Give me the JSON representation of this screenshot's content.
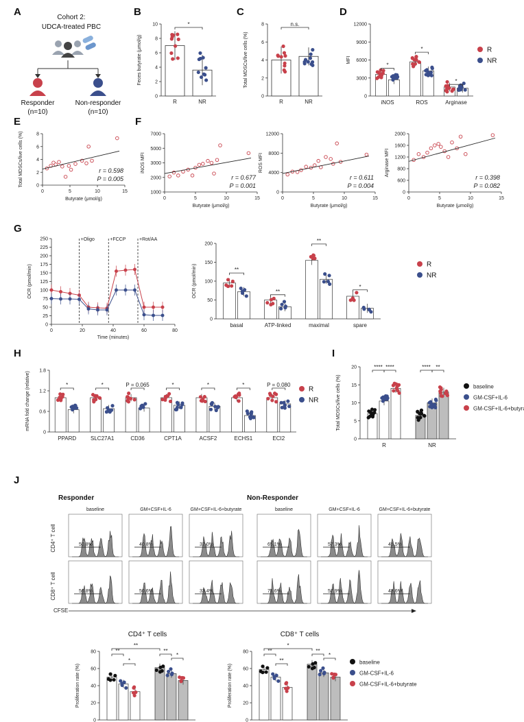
{
  "colors": {
    "R": "#c8414b",
    "NR": "#3b4f8c",
    "baseline": "#111111",
    "gray": "#bdbdbd",
    "hist": "#8a8a8a"
  },
  "panel_labels": [
    "A",
    "B",
    "C",
    "D",
    "E",
    "F",
    "G",
    "H",
    "I",
    "J"
  ],
  "panelA": {
    "title_line1": "Cohort 2:",
    "title_line2": "UDCA-treated PBC",
    "responder": "Responder",
    "responder_n": "(n=10)",
    "nonresponder": "Non-responder",
    "nonresponder_n": "(n=10)"
  },
  "panelJ": {
    "responder_title": "Responder",
    "nonresponder_title": "Non-Responder",
    "col_labels": [
      "baseline",
      "GM+CSF+IL-6",
      "GM+CSF+IL-6+butyrate"
    ],
    "row_cd4": "CD4⁺ T cell",
    "row_cd8": "CD8⁺ T cell",
    "cfse": "CFSE"
  },
  "chart_data": [
    {
      "id": "B",
      "type": "bar",
      "ylabel": "Feces butyrate (μmol/g)",
      "ylim": [
        0,
        10
      ],
      "yticks": [
        "0",
        "2",
        "4",
        "6",
        "8",
        "10"
      ],
      "categories": [
        "R",
        "NR"
      ],
      "values": [
        7.0,
        3.6
      ],
      "sd": [
        2.0,
        2.1
      ],
      "sig": [
        {
          "label": "*",
          "from": 0,
          "to": 1
        }
      ]
    },
    {
      "id": "C",
      "type": "bar",
      "ylabel": "Total MDSCs/live cells (%)",
      "ylim": [
        0,
        8
      ],
      "yticks": [
        "0",
        "2",
        "4",
        "6",
        "8"
      ],
      "categories": [
        "R",
        "NR"
      ],
      "values": [
        4.0,
        4.4
      ],
      "sd": [
        1.5,
        1.0
      ],
      "sig": [
        {
          "label": "n.s.",
          "from": 0,
          "to": 1
        }
      ]
    },
    {
      "id": "D",
      "type": "bar",
      "ylabel": "MFI",
      "ylim": [
        0,
        12000
      ],
      "yticks": [
        "0",
        "3000",
        "6000",
        "9000",
        "12000"
      ],
      "categories": [
        "iNOS",
        "ROS",
        "Arginase"
      ],
      "series": [
        {
          "name": "R",
          "values": [
            3600,
            5700,
            1500
          ]
        },
        {
          "name": "NR",
          "values": [
            2700,
            4200,
            1300
          ]
        }
      ],
      "legend": [
        "R",
        "NR"
      ],
      "sig": [
        "*",
        "*",
        "*"
      ]
    },
    {
      "id": "E",
      "type": "scatter",
      "xlabel": "Butyrate (μmol/g)",
      "ylabel": "Total MDSCs/live cells (%)",
      "xlim": [
        0,
        15
      ],
      "xticks": [
        "0",
        "5",
        "10",
        "15"
      ],
      "ylim": [
        0,
        8
      ],
      "yticks": [
        "0",
        "2",
        "4",
        "6",
        "8"
      ],
      "r": "r = 0.598",
      "p": "P = 0.005",
      "fit": [
        [
          0,
          2.5
        ],
        [
          14,
          5.3
        ]
      ],
      "points": [
        [
          0.8,
          2.6
        ],
        [
          1.5,
          3.0
        ],
        [
          2.0,
          3.5
        ],
        [
          2.4,
          3.2
        ],
        [
          3.0,
          3.6
        ],
        [
          3.6,
          2.9
        ],
        [
          4.2,
          1.3
        ],
        [
          4.8,
          3.0
        ],
        [
          5.2,
          2.4
        ],
        [
          6.0,
          3.3
        ],
        [
          7.2,
          3.8
        ],
        [
          8.0,
          3.4
        ],
        [
          8.4,
          6.0
        ],
        [
          9.0,
          3.8
        ],
        [
          13.6,
          7.3
        ]
      ]
    },
    {
      "id": "F1",
      "type": "scatter",
      "xlabel": "Butyrate (μmol/g)",
      "ylabel": "iNOS MFI",
      "xlim": [
        0,
        15
      ],
      "xticks": [
        "0",
        "5",
        "10",
        "15"
      ],
      "ylim": [
        1000,
        7000
      ],
      "yticks": [
        "1000",
        "2000",
        "3000",
        "5000",
        "7000"
      ],
      "r": "r = 0.677",
      "p": "P = 0.001",
      "fit": [
        [
          0,
          2900
        ],
        [
          14,
          4500
        ]
      ],
      "points": [
        [
          0.8,
          2600
        ],
        [
          1.5,
          3000
        ],
        [
          2.2,
          2700
        ],
        [
          3.0,
          3100
        ],
        [
          3.8,
          3300
        ],
        [
          4.5,
          2700
        ],
        [
          5.0,
          3500
        ],
        [
          5.6,
          3800
        ],
        [
          6.2,
          3900
        ],
        [
          7.0,
          4200
        ],
        [
          7.6,
          4000
        ],
        [
          8.0,
          2900
        ],
        [
          8.5,
          4300
        ],
        [
          9.0,
          5800
        ],
        [
          13.6,
          5000
        ]
      ]
    },
    {
      "id": "F2",
      "type": "scatter",
      "xlabel": "Butyrate (μmol/g)",
      "ylabel": "ROS MFI",
      "xlim": [
        0,
        15
      ],
      "xticks": [
        "0",
        "5",
        "10",
        "15"
      ],
      "ylim": [
        0,
        12000
      ],
      "yticks": [
        "0",
        "4000",
        "8000",
        "12000"
      ],
      "r": "r = 0.611",
      "p": "P = 0.004",
      "fit": [
        [
          0,
          3800
        ],
        [
          14,
          7400
        ]
      ],
      "points": [
        [
          0.8,
          3600
        ],
        [
          1.6,
          4200
        ],
        [
          2.4,
          4100
        ],
        [
          3.0,
          4500
        ],
        [
          3.8,
          5200
        ],
        [
          4.6,
          5000
        ],
        [
          5.2,
          5500
        ],
        [
          5.8,
          6400
        ],
        [
          6.2,
          5100
        ],
        [
          7.0,
          7200
        ],
        [
          7.8,
          6800
        ],
        [
          8.2,
          5800
        ],
        [
          8.8,
          10000
        ],
        [
          9.4,
          6200
        ],
        [
          13.6,
          7700
        ]
      ]
    },
    {
      "id": "F3",
      "type": "scatter",
      "xlabel": "Butyrate (μmol/g)",
      "ylabel": "Arginase MFI",
      "xlim": [
        0,
        15
      ],
      "xticks": [
        "0",
        "5",
        "10",
        "15"
      ],
      "ylim": [
        0,
        2000
      ],
      "yticks": [
        "0",
        "600",
        "800",
        "1200",
        "1600",
        "2000"
      ],
      "r": "r = 0.398",
      "p": "P = 0.082",
      "fit": [
        [
          0,
          1050
        ],
        [
          14,
          1850
        ]
      ],
      "points": [
        [
          0.8,
          1100
        ],
        [
          1.6,
          1300
        ],
        [
          2.4,
          1200
        ],
        [
          3.0,
          1350
        ],
        [
          3.6,
          1500
        ],
        [
          4.2,
          1600
        ],
        [
          4.8,
          1650
        ],
        [
          5.2,
          1550
        ],
        [
          5.8,
          1400
        ],
        [
          6.4,
          1200
        ],
        [
          7.0,
          1700
        ],
        [
          7.8,
          1500
        ],
        [
          8.4,
          1900
        ],
        [
          9.2,
          1300
        ],
        [
          13.6,
          1950
        ]
      ]
    },
    {
      "id": "G1",
      "type": "line",
      "xlabel": "Time (minutes)",
      "ylabel": "OCR (pmol/min)",
      "xlim": [
        0,
        80
      ],
      "xticks": [
        "0",
        "20",
        "40",
        "60",
        "80"
      ],
      "ylim": [
        0,
        250
      ],
      "yticks": [
        "0",
        "25",
        "50",
        "75",
        "100",
        "125",
        "150",
        "175",
        "200",
        "225",
        "250"
      ],
      "events": [
        {
          "x": 18,
          "label": "+Oligo"
        },
        {
          "x": 37,
          "label": "+FCCP"
        },
        {
          "x": 56,
          "label": "+Rot/AA"
        }
      ],
      "x": [
        0,
        6,
        12,
        18,
        24,
        30,
        36,
        42,
        48,
        54,
        60,
        66,
        72
      ],
      "series": [
        {
          "name": "R",
          "values": [
            100,
            95,
            90,
            85,
            50,
            48,
            47,
            155,
            158,
            160,
            50,
            50,
            50
          ]
        },
        {
          "name": "NR",
          "values": [
            75,
            74,
            74,
            73,
            45,
            42,
            42,
            100,
            100,
            100,
            28,
            26,
            26
          ]
        }
      ]
    },
    {
      "id": "G2",
      "type": "bar",
      "ylabel": "OCR (pmol/min)",
      "ylim": [
        0,
        200
      ],
      "yticks": [
        "0",
        "50",
        "100",
        "150",
        "200"
      ],
      "categories": [
        "basal",
        "ATP-linked",
        "maximal",
        "spare"
      ],
      "series": [
        {
          "name": "R",
          "values": [
            95,
            50,
            155,
            60
          ]
        },
        {
          "name": "NR",
          "values": [
            72,
            32,
            105,
            28
          ]
        }
      ],
      "legend": [
        "R",
        "NR"
      ],
      "sig": [
        "**",
        "**",
        "**",
        "*"
      ]
    },
    {
      "id": "H",
      "type": "bar",
      "ylabel": "mRNA fold change (relative)",
      "ylim": [
        0,
        1.8
      ],
      "yticks": [
        "0",
        "0.6",
        "1.2",
        "1.8"
      ],
      "categories": [
        "PPARD",
        "SLC27A1",
        "CD36",
        "CPT1A",
        "ACSF2",
        "ECHS1",
        "ECI2"
      ],
      "series": [
        {
          "name": "R",
          "values": [
            1.0,
            1.0,
            1.0,
            1.0,
            1.0,
            1.0,
            1.0
          ]
        },
        {
          "name": "NR",
          "values": [
            0.65,
            0.68,
            0.7,
            0.78,
            0.75,
            0.48,
            0.82
          ]
        }
      ],
      "legend": [
        "R",
        "NR"
      ],
      "sig": [
        "*",
        "*",
        "P = 0.065",
        "*",
        "*",
        "*",
        "P = 0.080"
      ]
    },
    {
      "id": "I",
      "type": "bar",
      "ylabel": "Total MDSCs/live cells (%)",
      "ylim": [
        0,
        20
      ],
      "yticks": [
        "0",
        "5",
        "10",
        "15",
        "20"
      ],
      "categories": [
        "R",
        "NR"
      ],
      "series": [
        {
          "name": "baseline",
          "values": [
            7,
            6.5
          ]
        },
        {
          "name": "GM-CSF+IL-6",
          "values": [
            10.5,
            10
          ]
        },
        {
          "name": "GM-CSF+IL-6+butyrate",
          "values": [
            14,
            13
          ]
        }
      ],
      "legend": [
        "baseline",
        "GM-CSF+IL-6",
        "GM-CSF+IL-6+butyrate"
      ],
      "sig": [
        "****",
        "****",
        "****",
        "**"
      ]
    },
    {
      "id": "J1",
      "type": "bar",
      "title": "CD4⁺ T cells",
      "ylabel": "Proliferation rate (%)",
      "ylim": [
        0,
        80
      ],
      "yticks": [
        "0",
        "20",
        "40",
        "60",
        "80"
      ],
      "categories": [
        "R",
        "NR"
      ],
      "series": [
        {
          "name": "baseline",
          "values": [
            50,
            61
          ]
        },
        {
          "name": "GM-CSF+IL-6",
          "values": [
            42,
            54
          ]
        },
        {
          "name": "GM-CSF+IL-6+butyrate",
          "values": [
            33,
            46
          ]
        }
      ],
      "legend": [
        "baseline",
        "GM-CSF+IL-6",
        "GM-CSF+IL-6+butyrate"
      ],
      "sig": [
        "**",
        "*",
        "**",
        "**",
        "*"
      ]
    },
    {
      "id": "J2",
      "type": "bar",
      "title": "CD8⁺ T cells",
      "ylabel": "Proliferation rate (%)",
      "ylim": [
        0,
        80
      ],
      "yticks": [
        "0",
        "20",
        "40",
        "60",
        "80"
      ],
      "categories": [
        "R",
        "NR"
      ],
      "series": [
        {
          "name": "baseline",
          "values": [
            59,
            65
          ]
        },
        {
          "name": "GM-CSF+IL-6",
          "values": [
            50,
            55
          ]
        },
        {
          "name": "GM-CSF+IL-6+butyrate",
          "values": [
            38,
            50
          ]
        }
      ],
      "legend": [
        "baseline",
        "GM-CSF+IL-6",
        "GM-CSF+IL-6+butyrate"
      ],
      "sig": [
        "**",
        "**",
        "*",
        "**",
        "*"
      ]
    }
  ],
  "flow": {
    "resp_cd4": [
      "50.8%",
      "40.8%",
      "32.0%"
    ],
    "resp_cd8": [
      "56.8%",
      "50.6%",
      "33.4%"
    ],
    "nonresp_cd4": [
      "65.1%",
      "57.3%",
      "45.5%"
    ],
    "nonresp_cd8": [
      "71.6%",
      "57.9%",
      "48.6%"
    ]
  }
}
